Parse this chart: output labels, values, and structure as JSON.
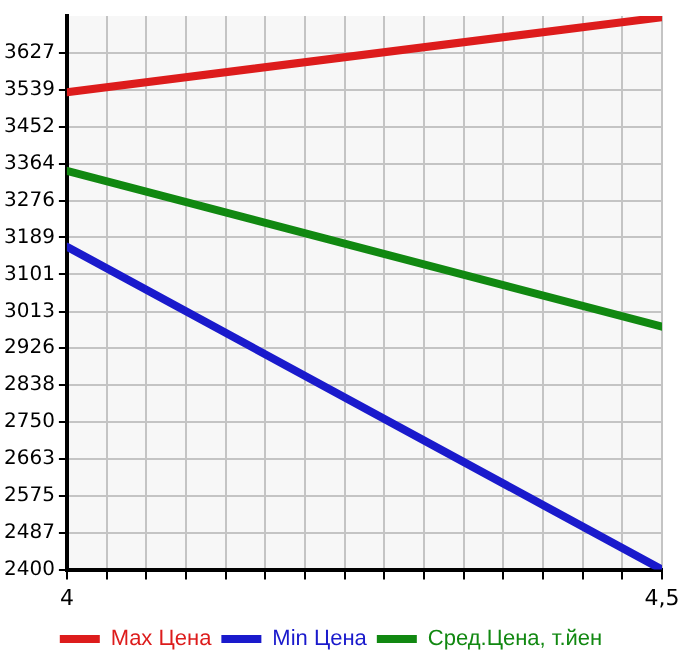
{
  "chart_data": {
    "type": "line",
    "x": [
      4,
      4.5
    ],
    "series": [
      {
        "name": "Max Цена",
        "color": "#dd1c1c",
        "values": [
          3534,
          3712
        ]
      },
      {
        "name": "Min Цена",
        "color": "#1a1acc",
        "values": [
          3167,
          2400
        ]
      },
      {
        "name": "Сред.Цена, т.йен",
        "color": "#118811",
        "values": [
          3347,
          2977
        ]
      }
    ],
    "xlim": [
      4,
      4.5
    ],
    "xticks": [
      4,
      {
        "value": 4.0333,
        "label": null
      },
      {
        "value": 4.0667,
        "label": null
      },
      {
        "value": 4.1,
        "label": null
      },
      {
        "value": 4.1333,
        "label": null
      },
      {
        "value": 4.1667,
        "label": null
      },
      {
        "value": 4.2,
        "label": null
      },
      {
        "value": 4.2333,
        "label": null
      },
      {
        "value": 4.2667,
        "label": null
      },
      {
        "value": 4.3,
        "label": null
      },
      {
        "value": 4.3333,
        "label": null
      },
      {
        "value": 4.3667,
        "label": null
      },
      {
        "value": 4.4,
        "label": null
      },
      {
        "value": 4.4333,
        "label": null
      },
      {
        "value": 4.4667,
        "label": null
      },
      {
        "value": 4.5,
        "label": "4,5"
      }
    ],
    "ylim": [
      2400,
      3715
    ],
    "yticks": [
      2400,
      2487,
      2575,
      2663,
      2750,
      2838,
      2926,
      3013,
      3101,
      3189,
      3276,
      3364,
      3452,
      3539,
      3627
    ],
    "grid": true,
    "legend": "bottom",
    "marker": "none",
    "line_style": "solid"
  }
}
